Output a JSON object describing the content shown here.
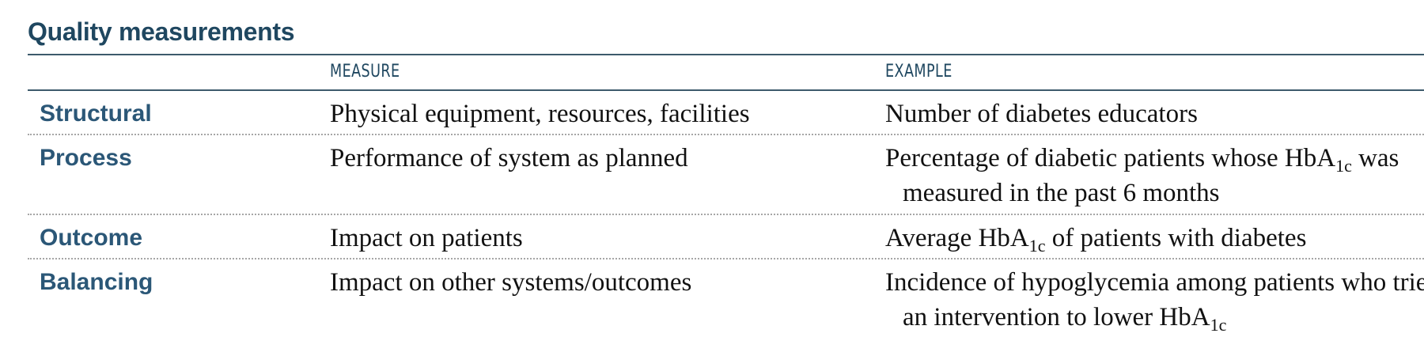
{
  "title": "Quality measurements",
  "headers": {
    "measure": "MEASURE",
    "example": "EXAMPLE"
  },
  "rows": [
    {
      "label": "Structural",
      "measure": "Physical equipment, resources, facilities",
      "example": {
        "pre": "Number of diabetes educators",
        "sub": "",
        "post": ""
      }
    },
    {
      "label": "Process",
      "measure": "Performance of system as planned",
      "example": {
        "pre": "Percentage of diabetic patients whose HbA",
        "sub": "1c",
        "post": " was measured in the past 6 months"
      }
    },
    {
      "label": "Outcome",
      "measure": "Impact on patients",
      "example": {
        "pre": "Average HbA",
        "sub": "1c",
        "post": " of patients with diabetes"
      }
    },
    {
      "label": "Balancing",
      "measure": "Impact on other systems/outcomes",
      "example": {
        "pre": "Incidence of hypoglycemia among patients who tried an intervention to lower HbA",
        "sub": "1c",
        "post": ""
      }
    }
  ]
}
